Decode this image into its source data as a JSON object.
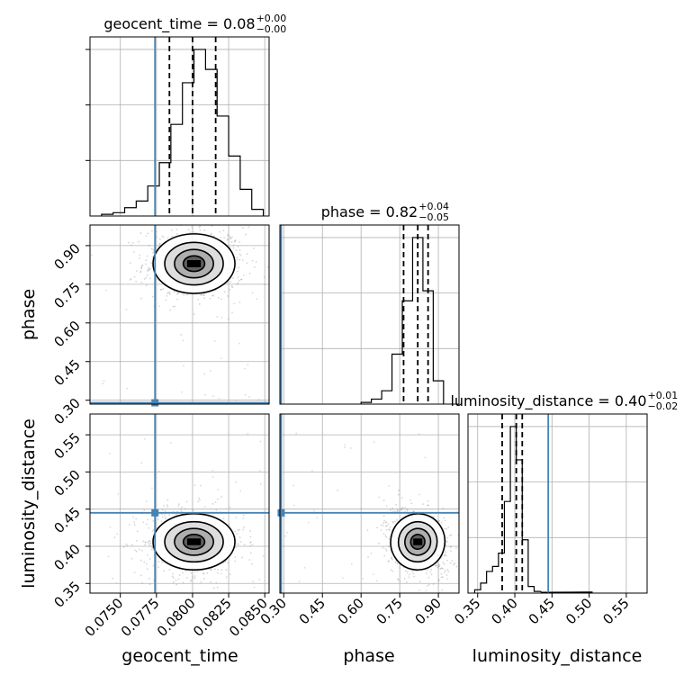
{
  "chart_data": {
    "type": "corner",
    "parameters": [
      "geocent_time",
      "phase",
      "luminosity_distance"
    ],
    "axis_labels": {
      "geocent_time": "geocent_time",
      "phase": "phase",
      "luminosity_distance": "luminosity_distance"
    },
    "titles": [
      {
        "param": "geocent_time",
        "text": "geocent_time = 0.08",
        "plus": "+0.00",
        "minus": "−0.00"
      },
      {
        "param": "phase",
        "text": "phase = 0.82",
        "plus": "+0.04",
        "minus": "−0.05"
      },
      {
        "param": "luminosity_distance",
        "text": "luminosity_distance = 0.40",
        "plus": "+0.01",
        "minus": "−0.02"
      }
    ],
    "ranges": {
      "geocent_time": [
        0.0729,
        0.0853
      ],
      "phase": [
        0.285,
        0.98
      ],
      "luminosity_distance": [
        0.337,
        0.578
      ]
    },
    "ticks": {
      "geocent_time": {
        "values": [
          0.075,
          0.0775,
          0.08,
          0.0825,
          0.085
        ],
        "labels": [
          "0.0750",
          "0.0775",
          "0.0800",
          "0.0825",
          "0.0850"
        ]
      },
      "phase": {
        "values": [
          0.3,
          0.45,
          0.6,
          0.75,
          0.9
        ],
        "labels": [
          "0.30",
          "0.45",
          "0.60",
          "0.75",
          "0.90"
        ]
      },
      "luminosity_distance": {
        "values": [
          0.35,
          0.4,
          0.45,
          0.5,
          0.55
        ],
        "labels": [
          "0.35",
          "0.40",
          "0.45",
          "0.50",
          "0.55"
        ]
      }
    },
    "truths": {
      "geocent_time": 0.0774,
      "phase": 0.29,
      "luminosity_distance": 0.445
    },
    "quantiles": {
      "geocent_time": [
        0.0784,
        0.08,
        0.0816
      ],
      "phase": [
        0.765,
        0.82,
        0.86
      ],
      "luminosity_distance": [
        0.383,
        0.402,
        0.41
      ]
    },
    "histograms": {
      "geocent_time": {
        "x": [
          0.0741,
          0.0749,
          0.0757,
          0.0765,
          0.0773,
          0.0781,
          0.0789,
          0.0797,
          0.0805,
          0.0813,
          0.0821,
          0.0829,
          0.0837,
          0.0845
        ],
        "values": [
          1,
          2,
          5,
          9,
          18,
          32,
          55,
          80,
          100,
          88,
          60,
          36,
          16,
          4
        ]
      },
      "phase": {
        "x": [
          0.62,
          0.66,
          0.7,
          0.74,
          0.78,
          0.82,
          0.86,
          0.9
        ],
        "values": [
          1,
          3,
          8,
          30,
          62,
          100,
          68,
          14
        ]
      },
      "luminosity_distance": {
        "x": [
          0.35,
          0.358,
          0.366,
          0.374,
          0.382,
          0.39,
          0.398,
          0.406,
          0.414,
          0.422,
          0.43,
          0.44,
          0.5
        ],
        "values": [
          2,
          6,
          13,
          16,
          24,
          55,
          100,
          80,
          32,
          4,
          1,
          0.5,
          0.6
        ]
      }
    },
    "densities": {
      "phase_vs_geocent_time": {
        "center": [
          0.0801,
          0.83
        ],
        "spread": [
          0.00135,
          0.055
        ],
        "correlation": 0
      },
      "luminosity_distance_vs_geocent_time": {
        "center": [
          0.0801,
          0.406
        ],
        "spread": [
          0.00135,
          0.018
        ],
        "correlation": 0
      },
      "luminosity_distance_vs_phase": {
        "center": [
          0.82,
          0.406
        ],
        "spread": [
          0.05,
          0.018
        ],
        "correlation": -0.3
      }
    }
  }
}
